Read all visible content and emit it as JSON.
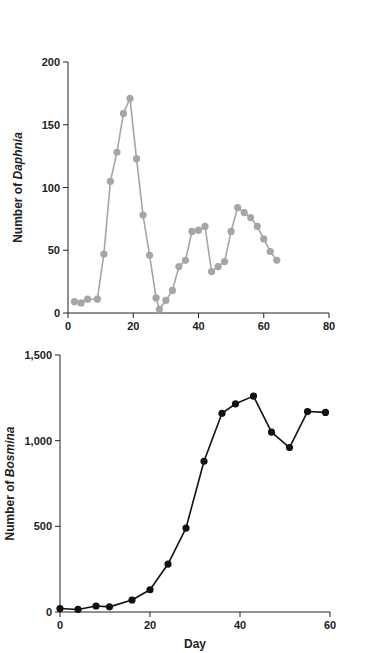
{
  "chart_data": [
    {
      "type": "line",
      "y_label": "Number of Daphnia",
      "color": "#a6a6a6",
      "marker": "circle",
      "x": [
        2,
        4,
        6,
        9,
        11,
        13,
        15,
        17,
        19,
        21,
        23,
        25,
        27,
        28,
        30,
        32,
        34,
        36,
        38,
        40,
        42,
        44,
        46,
        48,
        50,
        52,
        54,
        56,
        58,
        60,
        62,
        64
      ],
      "values": [
        9,
        8,
        11,
        11,
        47,
        105,
        128,
        159,
        171,
        123,
        78,
        46,
        12,
        3,
        10,
        18,
        37,
        42,
        65,
        66,
        69,
        33,
        37,
        41,
        65,
        84,
        80,
        76,
        69,
        59,
        49,
        42
      ],
      "xlim": [
        0,
        80
      ],
      "ylim": [
        0,
        200
      ],
      "xticks": [
        0,
        20,
        40,
        60,
        80
      ],
      "yticks": [
        0,
        50,
        100,
        150,
        200
      ]
    },
    {
      "type": "line",
      "y_label": "Number of Bosmina",
      "x_label": "Day",
      "color": "#111111",
      "marker": "circle",
      "x": [
        0,
        4,
        8,
        11,
        16,
        20,
        24,
        28,
        32,
        36,
        39,
        43,
        47,
        51,
        55,
        59
      ],
      "values": [
        20,
        15,
        35,
        30,
        70,
        130,
        280,
        490,
        880,
        1160,
        1215,
        1260,
        1050,
        960,
        1170,
        1165
      ],
      "xlim": [
        0,
        60
      ],
      "ylim": [
        0,
        1500
      ],
      "xticks": [
        0,
        20,
        40,
        60
      ],
      "yticks": [
        0,
        500,
        {
          "value": 1000,
          "label": "1,000"
        },
        {
          "value": 1500,
          "label": "1,500"
        }
      ]
    }
  ]
}
